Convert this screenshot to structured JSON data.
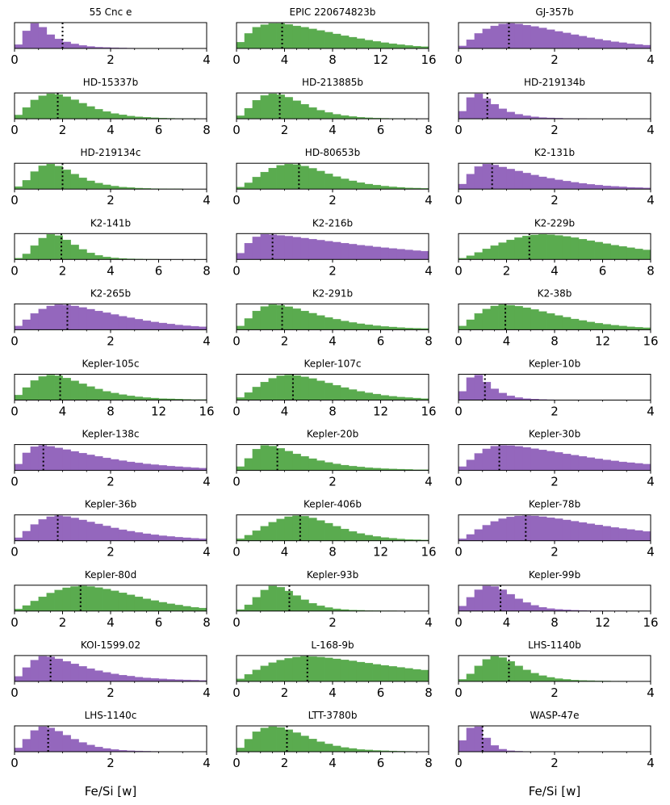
{
  "figure": {
    "xlabel": "Fe/Si [w]"
  },
  "colors": {
    "purple": "#9467bd",
    "green": "#5aab4f",
    "axis": "#000000",
    "marker": "#000000"
  },
  "chart_data": [
    {
      "type": "bar",
      "title": "55 Cnc e",
      "color": "purple",
      "xlim": [
        0,
        4
      ],
      "xticks": [
        "0",
        "2",
        "4"
      ],
      "median": 1.0,
      "values": [
        0.15,
        0.7,
        1.0,
        0.85,
        0.55,
        0.38,
        0.26,
        0.18,
        0.12,
        0.08,
        0.05,
        0.04,
        0.03,
        0.02,
        0.015,
        0.01,
        0.01,
        0,
        0,
        0,
        0,
        0,
        0,
        0
      ]
    },
    {
      "type": "bar",
      "title": "EPIC 220674823b",
      "color": "green",
      "xlim": [
        0,
        16
      ],
      "xticks": [
        "0",
        "4",
        "8",
        "12",
        "16"
      ],
      "median": 3.8,
      "values": [
        0.25,
        0.6,
        0.85,
        0.95,
        1.0,
        1.0,
        0.96,
        0.9,
        0.85,
        0.78,
        0.72,
        0.65,
        0.58,
        0.51,
        0.45,
        0.39,
        0.33,
        0.28,
        0.23,
        0.19,
        0.15,
        0.12,
        0.09,
        0.07
      ]
    },
    {
      "type": "bar",
      "title": "GJ-357b",
      "color": "purple",
      "xlim": [
        0,
        4
      ],
      "xticks": [
        "0",
        "2",
        "4"
      ],
      "median": 1.05,
      "values": [
        0.1,
        0.35,
        0.6,
        0.78,
        0.9,
        0.98,
        1.0,
        0.98,
        0.93,
        0.88,
        0.82,
        0.75,
        0.68,
        0.62,
        0.55,
        0.49,
        0.43,
        0.37,
        0.32,
        0.27,
        0.23,
        0.19,
        0.16,
        0.13
      ]
    },
    {
      "type": "bar",
      "title": "HD-15337b",
      "color": "green",
      "xlim": [
        0,
        8
      ],
      "xticks": [
        "0",
        "2",
        "4",
        "6",
        "8"
      ],
      "median": 1.8,
      "values": [
        0.15,
        0.45,
        0.75,
        0.92,
        1.0,
        0.97,
        0.88,
        0.76,
        0.62,
        0.49,
        0.38,
        0.29,
        0.21,
        0.16,
        0.11,
        0.08,
        0.06,
        0.04,
        0.03,
        0.02,
        0.015,
        0.01,
        0.01,
        0
      ]
    },
    {
      "type": "bar",
      "title": "HD-213885b",
      "color": "green",
      "xlim": [
        0,
        8
      ],
      "xticks": [
        "0",
        "2",
        "4",
        "6",
        "8"
      ],
      "median": 1.8,
      "values": [
        0.12,
        0.42,
        0.74,
        0.93,
        1.0,
        0.96,
        0.86,
        0.72,
        0.58,
        0.45,
        0.34,
        0.25,
        0.18,
        0.13,
        0.09,
        0.06,
        0.04,
        0.03,
        0.02,
        0.015,
        0.01,
        0.01,
        0,
        0
      ]
    },
    {
      "type": "bar",
      "title": "HD-219134b",
      "color": "purple",
      "xlim": [
        0,
        4
      ],
      "xticks": [
        "0",
        "2",
        "4"
      ],
      "median": 0.6,
      "values": [
        0.3,
        0.85,
        1.0,
        0.8,
        0.58,
        0.4,
        0.27,
        0.18,
        0.12,
        0.08,
        0.05,
        0.035,
        0.025,
        0.015,
        0.01,
        0.01,
        0,
        0,
        0,
        0,
        0,
        0,
        0,
        0
      ]
    },
    {
      "type": "bar",
      "title": "HD-219134c",
      "color": "green",
      "xlim": [
        0,
        4
      ],
      "xticks": [
        "0",
        "2",
        "4"
      ],
      "median": 1.0,
      "values": [
        0.1,
        0.35,
        0.7,
        0.93,
        1.0,
        0.92,
        0.77,
        0.6,
        0.45,
        0.33,
        0.24,
        0.17,
        0.12,
        0.08,
        0.06,
        0.04,
        0.03,
        0.02,
        0.015,
        0.01,
        0.01,
        0,
        0,
        0
      ]
    },
    {
      "type": "bar",
      "title": "HD-80653b",
      "color": "green",
      "xlim": [
        0,
        4
      ],
      "xticks": [
        "0",
        "2",
        "4"
      ],
      "median": 1.3,
      "values": [
        0.08,
        0.25,
        0.48,
        0.68,
        0.84,
        0.95,
        1.0,
        0.98,
        0.92,
        0.83,
        0.72,
        0.61,
        0.5,
        0.41,
        0.33,
        0.26,
        0.2,
        0.16,
        0.12,
        0.09,
        0.07,
        0.05,
        0.04,
        0.03
      ]
    },
    {
      "type": "bar",
      "title": "K2-131b",
      "color": "purple",
      "xlim": [
        0,
        4
      ],
      "xticks": [
        "0",
        "2",
        "4"
      ],
      "median": 0.7,
      "values": [
        0.2,
        0.6,
        0.9,
        1.0,
        0.96,
        0.88,
        0.8,
        0.72,
        0.64,
        0.56,
        0.49,
        0.43,
        0.37,
        0.32,
        0.27,
        0.23,
        0.19,
        0.16,
        0.13,
        0.11,
        0.09,
        0.07,
        0.06,
        0.05
      ]
    },
    {
      "type": "bar",
      "title": "K2-141b",
      "color": "green",
      "xlim": [
        0,
        8
      ],
      "xticks": [
        "0",
        "2",
        "4",
        "6",
        "8"
      ],
      "median": 1.95,
      "values": [
        0.05,
        0.22,
        0.55,
        0.85,
        1.0,
        0.95,
        0.78,
        0.58,
        0.4,
        0.26,
        0.16,
        0.1,
        0.06,
        0.04,
        0.025,
        0.015,
        0.01,
        0.01,
        0,
        0,
        0,
        0,
        0,
        0
      ]
    },
    {
      "type": "bar",
      "title": "K2-216b",
      "color": "purple",
      "xlim": [
        0,
        4
      ],
      "xticks": [
        "0",
        "2",
        "4"
      ],
      "median": 0.75,
      "values": [
        0.25,
        0.65,
        0.9,
        1.0,
        0.99,
        0.96,
        0.93,
        0.89,
        0.85,
        0.81,
        0.77,
        0.73,
        0.69,
        0.65,
        0.61,
        0.57,
        0.54,
        0.5,
        0.47,
        0.44,
        0.41,
        0.38,
        0.35,
        0.33
      ]
    },
    {
      "type": "bar",
      "title": "K2-229b",
      "color": "green",
      "xlim": [
        0,
        8
      ],
      "xticks": [
        "0",
        "2",
        "4",
        "6",
        "8"
      ],
      "median": 2.95,
      "values": [
        0.05,
        0.15,
        0.28,
        0.42,
        0.55,
        0.67,
        0.78,
        0.87,
        0.94,
        0.98,
        1.0,
        0.99,
        0.96,
        0.92,
        0.87,
        0.81,
        0.75,
        0.69,
        0.63,
        0.57,
        0.52,
        0.47,
        0.42,
        0.38
      ]
    },
    {
      "type": "bar",
      "title": "K2-265b",
      "color": "purple",
      "xlim": [
        0,
        4
      ],
      "xticks": [
        "0",
        "2",
        "4"
      ],
      "median": 1.1,
      "values": [
        0.15,
        0.4,
        0.65,
        0.83,
        0.95,
        1.0,
        0.99,
        0.95,
        0.89,
        0.82,
        0.75,
        0.68,
        0.61,
        0.54,
        0.48,
        0.42,
        0.36,
        0.31,
        0.27,
        0.23,
        0.19,
        0.16,
        0.14,
        0.12
      ]
    },
    {
      "type": "bar",
      "title": "K2-291b",
      "color": "green",
      "xlim": [
        0,
        8
      ],
      "xticks": [
        "0",
        "2",
        "4",
        "6",
        "8"
      ],
      "median": 1.9,
      "values": [
        0.15,
        0.45,
        0.75,
        0.93,
        1.0,
        0.98,
        0.92,
        0.84,
        0.75,
        0.66,
        0.57,
        0.49,
        0.42,
        0.35,
        0.29,
        0.24,
        0.2,
        0.16,
        0.13,
        0.11,
        0.09,
        0.07,
        0.06,
        0.05
      ]
    },
    {
      "type": "bar",
      "title": "K2-38b",
      "color": "green",
      "xlim": [
        0,
        16
      ],
      "xticks": [
        "0",
        "4",
        "8",
        "12",
        "16"
      ],
      "median": 3.9,
      "values": [
        0.15,
        0.4,
        0.65,
        0.83,
        0.95,
        1.0,
        0.98,
        0.94,
        0.88,
        0.81,
        0.73,
        0.65,
        0.57,
        0.5,
        0.43,
        0.37,
        0.31,
        0.26,
        0.22,
        0.18,
        0.15,
        0.12,
        0.1,
        0.08
      ]
    },
    {
      "type": "bar",
      "title": "Kepler-105c",
      "color": "green",
      "xlim": [
        0,
        16
      ],
      "xticks": [
        "0",
        "4",
        "8",
        "12",
        "16"
      ],
      "median": 3.8,
      "values": [
        0.2,
        0.5,
        0.78,
        0.94,
        1.0,
        0.97,
        0.88,
        0.77,
        0.65,
        0.54,
        0.44,
        0.35,
        0.28,
        0.22,
        0.17,
        0.13,
        0.1,
        0.08,
        0.06,
        0.05,
        0.04,
        0.03,
        0.02,
        0.02
      ]
    },
    {
      "type": "bar",
      "title": "Kepler-107c",
      "color": "green",
      "xlim": [
        0,
        16
      ],
      "xticks": [
        "0",
        "4",
        "8",
        "12",
        "16"
      ],
      "median": 4.7,
      "values": [
        0.1,
        0.3,
        0.52,
        0.72,
        0.87,
        0.97,
        1.0,
        0.98,
        0.93,
        0.86,
        0.77,
        0.68,
        0.59,
        0.5,
        0.42,
        0.35,
        0.29,
        0.24,
        0.19,
        0.15,
        0.12,
        0.1,
        0.08,
        0.06
      ]
    },
    {
      "type": "bar",
      "title": "Kepler-10b",
      "color": "purple",
      "xlim": [
        0,
        4
      ],
      "xticks": [
        "0",
        "2",
        "4"
      ],
      "median": 0.55,
      "values": [
        0.35,
        0.9,
        1.0,
        0.72,
        0.45,
        0.28,
        0.17,
        0.1,
        0.06,
        0.04,
        0.025,
        0.015,
        0.01,
        0.01,
        0,
        0,
        0,
        0,
        0,
        0,
        0,
        0,
        0,
        0
      ]
    },
    {
      "type": "bar",
      "title": "Kepler-138c",
      "color": "purple",
      "xlim": [
        0,
        4
      ],
      "xticks": [
        "0",
        "2",
        "4"
      ],
      "median": 0.6,
      "values": [
        0.25,
        0.7,
        0.95,
        1.0,
        0.96,
        0.9,
        0.83,
        0.76,
        0.69,
        0.62,
        0.56,
        0.5,
        0.44,
        0.39,
        0.34,
        0.3,
        0.26,
        0.23,
        0.2,
        0.17,
        0.15,
        0.13,
        0.11,
        0.09
      ]
    },
    {
      "type": "bar",
      "title": "Kepler-20b",
      "color": "green",
      "xlim": [
        0,
        4
      ],
      "xticks": [
        "0",
        "2",
        "4"
      ],
      "median": 0.85,
      "values": [
        0.15,
        0.48,
        0.85,
        1.0,
        0.97,
        0.88,
        0.77,
        0.66,
        0.56,
        0.47,
        0.39,
        0.32,
        0.26,
        0.21,
        0.17,
        0.14,
        0.11,
        0.09,
        0.07,
        0.06,
        0.05,
        0.04,
        0.03,
        0.03
      ]
    },
    {
      "type": "bar",
      "title": "Kepler-30b",
      "color": "purple",
      "xlim": [
        0,
        4
      ],
      "xticks": [
        "0",
        "2",
        "4"
      ],
      "median": 0.85,
      "values": [
        0.15,
        0.42,
        0.68,
        0.86,
        0.97,
        1.0,
        0.99,
        0.96,
        0.92,
        0.87,
        0.82,
        0.77,
        0.72,
        0.66,
        0.61,
        0.56,
        0.51,
        0.46,
        0.42,
        0.38,
        0.34,
        0.31,
        0.28,
        0.25
      ]
    },
    {
      "type": "bar",
      "title": "Kepler-36b",
      "color": "purple",
      "xlim": [
        0,
        4
      ],
      "xticks": [
        "0",
        "2",
        "4"
      ],
      "median": 0.9,
      "values": [
        0.12,
        0.38,
        0.65,
        0.85,
        0.96,
        1.0,
        0.97,
        0.91,
        0.83,
        0.75,
        0.67,
        0.59,
        0.51,
        0.44,
        0.38,
        0.33,
        0.28,
        0.24,
        0.2,
        0.17,
        0.14,
        0.12,
        0.1,
        0.08
      ]
    },
    {
      "type": "bar",
      "title": "Kepler-406b",
      "color": "green",
      "xlim": [
        0,
        16
      ],
      "xticks": [
        "0",
        "4",
        "8",
        "12",
        "16"
      ],
      "median": 5.3,
      "values": [
        0.08,
        0.22,
        0.4,
        0.58,
        0.74,
        0.87,
        0.96,
        1.0,
        0.98,
        0.91,
        0.81,
        0.7,
        0.58,
        0.47,
        0.37,
        0.29,
        0.22,
        0.17,
        0.13,
        0.1,
        0.07,
        0.05,
        0.04,
        0.03
      ]
    },
    {
      "type": "bar",
      "title": "Kepler-78b",
      "color": "purple",
      "xlim": [
        0,
        4
      ],
      "xticks": [
        "0",
        "2",
        "4"
      ],
      "median": 1.4,
      "values": [
        0.08,
        0.25,
        0.45,
        0.62,
        0.77,
        0.88,
        0.95,
        0.99,
        1.0,
        0.99,
        0.96,
        0.92,
        0.88,
        0.83,
        0.78,
        0.73,
        0.68,
        0.63,
        0.58,
        0.53,
        0.49,
        0.45,
        0.41,
        0.37
      ]
    },
    {
      "type": "bar",
      "title": "Kepler-80d",
      "color": "green",
      "xlim": [
        0,
        8
      ],
      "xticks": [
        "0",
        "2",
        "4",
        "6",
        "8"
      ],
      "median": 2.75,
      "values": [
        0.08,
        0.22,
        0.4,
        0.57,
        0.72,
        0.84,
        0.93,
        0.98,
        1.0,
        0.98,
        0.94,
        0.88,
        0.81,
        0.73,
        0.65,
        0.57,
        0.49,
        0.42,
        0.35,
        0.29,
        0.24,
        0.19,
        0.15,
        0.12
      ]
    },
    {
      "type": "bar",
      "title": "Kepler-93b",
      "color": "green",
      "xlim": [
        0,
        4
      ],
      "xticks": [
        "0",
        "2",
        "4"
      ],
      "median": 1.1,
      "values": [
        0.06,
        0.25,
        0.55,
        0.84,
        1.0,
        0.95,
        0.8,
        0.62,
        0.45,
        0.31,
        0.21,
        0.14,
        0.09,
        0.06,
        0.04,
        0.03,
        0.02,
        0.015,
        0.01,
        0.01,
        0,
        0,
        0,
        0
      ]
    },
    {
      "type": "bar",
      "title": "Kepler-99b",
      "color": "purple",
      "xlim": [
        0,
        16
      ],
      "xticks": [
        "0",
        "4",
        "8",
        "12",
        "16"
      ],
      "median": 3.5,
      "values": [
        0.2,
        0.55,
        0.85,
        1.0,
        0.98,
        0.85,
        0.67,
        0.49,
        0.34,
        0.23,
        0.15,
        0.1,
        0.07,
        0.05,
        0.035,
        0.025,
        0.018,
        0.013,
        0.01,
        0.01,
        0.01,
        0,
        0,
        0
      ]
    },
    {
      "type": "bar",
      "title": "KOI-1599.02",
      "color": "purple",
      "xlim": [
        0,
        4
      ],
      "xticks": [
        "0",
        "2",
        "4"
      ],
      "median": 0.75,
      "values": [
        0.2,
        0.55,
        0.85,
        1.0,
        0.98,
        0.9,
        0.8,
        0.7,
        0.6,
        0.51,
        0.43,
        0.36,
        0.3,
        0.25,
        0.21,
        0.17,
        0.14,
        0.12,
        0.1,
        0.08,
        0.07,
        0.06,
        0.05,
        0.04
      ]
    },
    {
      "type": "bar",
      "title": "L-168-9b",
      "color": "green",
      "xlim": [
        0,
        8
      ],
      "xticks": [
        "0",
        "2",
        "4",
        "6",
        "8"
      ],
      "median": 2.95,
      "values": [
        0.1,
        0.28,
        0.46,
        0.62,
        0.75,
        0.85,
        0.92,
        0.97,
        1.0,
        0.99,
        0.97,
        0.94,
        0.9,
        0.86,
        0.82,
        0.77,
        0.73,
        0.68,
        0.64,
        0.6,
        0.56,
        0.52,
        0.48,
        0.45
      ]
    },
    {
      "type": "bar",
      "title": "LHS-1140b",
      "color": "green",
      "xlim": [
        0,
        4
      ],
      "xticks": [
        "0",
        "2",
        "4"
      ],
      "median": 1.05,
      "values": [
        0.08,
        0.3,
        0.62,
        0.88,
        1.0,
        0.95,
        0.8,
        0.62,
        0.46,
        0.33,
        0.23,
        0.16,
        0.11,
        0.08,
        0.05,
        0.04,
        0.03,
        0.02,
        0.015,
        0.01,
        0.01,
        0,
        0,
        0
      ]
    },
    {
      "type": "bar",
      "title": "LHS-1140c",
      "color": "purple",
      "xlim": [
        0,
        4
      ],
      "xticks": [
        "0",
        "2",
        "4"
      ],
      "median": 0.7,
      "values": [
        0.15,
        0.5,
        0.85,
        1.0,
        0.95,
        0.82,
        0.66,
        0.5,
        0.37,
        0.27,
        0.19,
        0.13,
        0.09,
        0.06,
        0.04,
        0.03,
        0.02,
        0.015,
        0.01,
        0.01,
        0,
        0,
        0,
        0
      ]
    },
    {
      "type": "bar",
      "title": "LTT-3780b",
      "color": "green",
      "xlim": [
        0,
        8
      ],
      "xticks": [
        "0",
        "2",
        "4",
        "6",
        "8"
      ],
      "median": 2.1,
      "values": [
        0.15,
        0.5,
        0.8,
        0.95,
        1.0,
        0.97,
        0.88,
        0.76,
        0.63,
        0.51,
        0.4,
        0.31,
        0.23,
        0.17,
        0.13,
        0.09,
        0.07,
        0.05,
        0.04,
        0.03,
        0.02,
        0.015,
        0.01,
        0.01
      ]
    },
    {
      "type": "bar",
      "title": "WASP-47e",
      "color": "purple",
      "xlim": [
        0,
        4
      ],
      "xticks": [
        "0",
        "2",
        "4"
      ],
      "median": 0.5,
      "values": [
        0.45,
        0.95,
        1.0,
        0.55,
        0.25,
        0.1,
        0.04,
        0.02,
        0.01,
        0.01,
        0,
        0,
        0,
        0,
        0,
        0,
        0,
        0,
        0,
        0,
        0,
        0,
        0,
        0
      ]
    }
  ]
}
